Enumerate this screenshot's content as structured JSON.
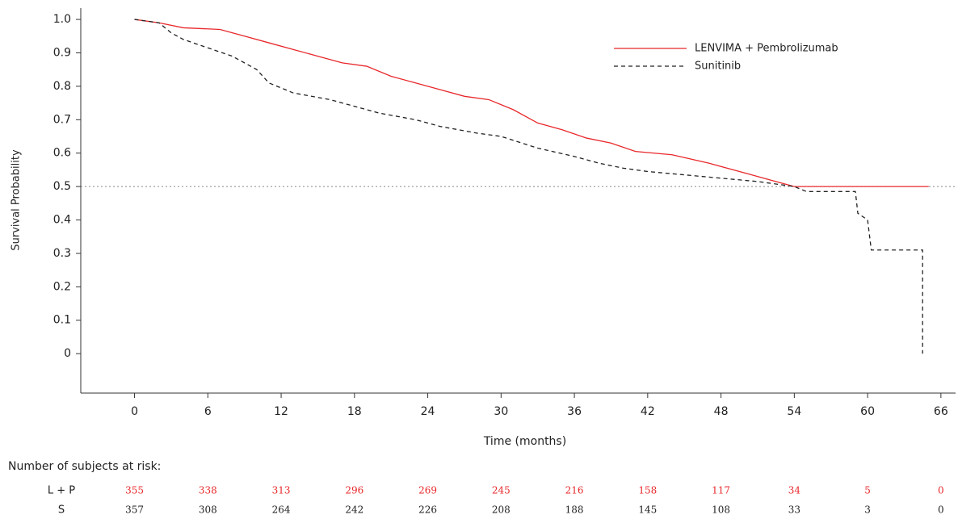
{
  "chart_data": {
    "type": "line",
    "xlabel": "Time (months)",
    "ylabel": "Survival Probability",
    "xlim": [
      -4.4,
      67.2
    ],
    "ylim": [
      -0.118,
      1.034
    ],
    "xticks": [
      0,
      6,
      12,
      18,
      24,
      30,
      36,
      42,
      48,
      54,
      60,
      66
    ],
    "yticks": [
      {
        "value": 1,
        "label": "1.0"
      },
      0.9,
      0.8,
      0.7,
      0.6,
      0.5,
      0.4,
      0.3,
      0.2,
      0.1,
      0
    ],
    "hline": 0.5,
    "legend": "top-right",
    "series": [
      {
        "name": "LENVIMA + Pembrolizumab",
        "color": "#e8282b",
        "dashed": false,
        "x": [
          0,
          2,
          4,
          7,
          9,
          11,
          13,
          15,
          17,
          19,
          21,
          23,
          25,
          27,
          29,
          31,
          33,
          35,
          37,
          39,
          41,
          44,
          47,
          50,
          52,
          54,
          65
        ],
        "values": [
          1.0,
          0.99,
          0.975,
          0.97,
          0.95,
          0.93,
          0.91,
          0.89,
          0.87,
          0.86,
          0.83,
          0.81,
          0.79,
          0.77,
          0.76,
          0.73,
          0.69,
          0.67,
          0.645,
          0.63,
          0.605,
          0.595,
          0.57,
          0.54,
          0.52,
          0.5,
          0.5
        ]
      },
      {
        "name": "Sunitinib",
        "color": "#222222",
        "dashed": true,
        "x": [
          0,
          2,
          3,
          4,
          6,
          8,
          10,
          11,
          13,
          16,
          18,
          20,
          23,
          25,
          28,
          30,
          33,
          36,
          38,
          40,
          42,
          45,
          48,
          51,
          54,
          55,
          59,
          59.2,
          60,
          60.3,
          64.5,
          64.5
        ],
        "values": [
          1.0,
          0.99,
          0.96,
          0.94,
          0.915,
          0.89,
          0.85,
          0.81,
          0.78,
          0.76,
          0.74,
          0.72,
          0.7,
          0.68,
          0.66,
          0.65,
          0.615,
          0.59,
          0.57,
          0.555,
          0.545,
          0.535,
          0.525,
          0.515,
          0.5,
          0.485,
          0.485,
          0.42,
          0.4,
          0.31,
          0.31,
          0
        ]
      }
    ],
    "risk_table": {
      "title": "Number of subjects at risk:",
      "rows": [
        {
          "label": "L + P",
          "color": "#e8282b",
          "values": [
            355,
            338,
            313,
            296,
            269,
            245,
            216,
            158,
            117,
            34,
            5,
            0
          ]
        },
        {
          "label": "S",
          "color": "#222222",
          "values": [
            357,
            308,
            264,
            242,
            226,
            208,
            188,
            145,
            108,
            33,
            3,
            0
          ]
        }
      ]
    }
  }
}
